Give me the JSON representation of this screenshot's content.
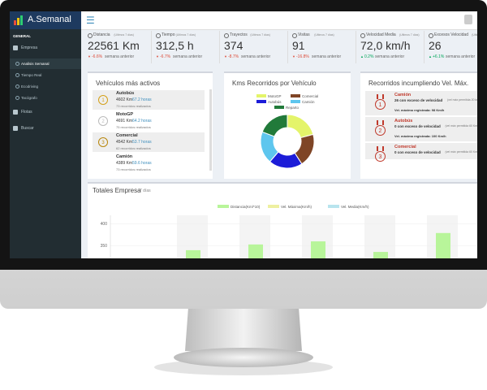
{
  "app": {
    "brand": "A.Semanal"
  },
  "sidebar": {
    "section": "GENERAL",
    "items": [
      "Empresa",
      "Analisis Semanal",
      "Tiempo Real",
      "Ecodriving",
      "Tacógrafo",
      "Flotas",
      "Buscar"
    ]
  },
  "kpis": [
    {
      "label": "Distancia",
      "period": "(Ultimos 7 días)",
      "value": "22561 Km",
      "change": "-6.6%",
      "note": "semana anterior",
      "trend": "down"
    },
    {
      "label": "Tiempo",
      "period": "(Ultimos 7 días)",
      "value": "312,5 h",
      "change": "-6.7%",
      "note": "semana anterior",
      "trend": "down"
    },
    {
      "label": "Trayectos",
      "period": "(Ultimos 7 días)",
      "value": "374",
      "change": "-8.7%",
      "note": "semana anterior",
      "trend": "down"
    },
    {
      "label": "Visitas",
      "period": "(Ultimos 7 días)",
      "value": "91",
      "change": "-16.8%",
      "note": "semana anterior",
      "trend": "down"
    },
    {
      "label": "Velocidad Media",
      "period": "(Ultimos 7 días)",
      "value": "72,0 km/h",
      "change": "0.2%",
      "note": "semana anterior",
      "trend": "up"
    },
    {
      "label": "Excesos Velocidad",
      "period": "(Ultimos 7 días)",
      "value": "26",
      "change": "+6.1%",
      "note": "semana anterior",
      "trend": "up"
    }
  ],
  "vehicles": {
    "title": "Vehículos más activos",
    "items": [
      {
        "name": "Autobús",
        "km": "4602 Km",
        "hours": "67.2 horas",
        "trips": "73 recorridos realizados",
        "medal": "1"
      },
      {
        "name": "MotoGP",
        "km": "4691 Km",
        "hours": "64.2 horas",
        "trips": "75 recorridos realizados",
        "medal": "2"
      },
      {
        "name": "Comercial",
        "km": "4542 Km",
        "hours": "53.7 horas",
        "trips": "62 recorridos realizados",
        "medal": "3"
      },
      {
        "name": "Camión",
        "km": "4389 Km",
        "hours": "59.6 horas",
        "trips": "73 recorridos realizados",
        "medal": ""
      }
    ]
  },
  "donut": {
    "type": "pie",
    "title": "Kms Recorridos por Vehículo",
    "categories": [
      "MotoGP",
      "Comercial",
      "Autobús",
      "Camión",
      "Reparto"
    ],
    "values": [
      4691,
      4542,
      4602,
      4389,
      4337
    ],
    "colors": [
      "#e4f46a",
      "#7f4526",
      "#1c1cd8",
      "#5ec6ee",
      "#217a3a"
    ]
  },
  "speeding": {
    "title": "Recorridos incumpliendo Vel. Máx.",
    "items": [
      {
        "rank": "1",
        "name": "Camión",
        "count": "26 con exceso de velocidad",
        "limit": "(vel máx permitida 20 km/h)",
        "max": "Vel. máxima registrada: 98 Km/h"
      },
      {
        "rank": "2",
        "name": "Autobús",
        "count": "0 con exceso de velocidad",
        "limit": "(vel máx permitida 60 Km/h)",
        "max": "Vel. máxima registrada: 100 Km/h"
      },
      {
        "rank": "3",
        "name": "Comercial",
        "count": "0 con exceso de velocidad",
        "limit": "(vel máx permitida 60 Km/h)",
        "max": ""
      }
    ]
  },
  "totals": {
    "type": "bar",
    "title": "Totales Empresa",
    "subtitle": "7 días",
    "legend": [
      "Distancia(Km/*10)",
      "Vel. Máxima(Km/h)",
      "Vel. Media(Km/h)"
    ],
    "legend_colors": [
      "#b8f59a",
      "#eef0a0",
      "#b8e4ee"
    ],
    "values": [
      340,
      353,
      360,
      336,
      379
    ],
    "color": "#b8f59a",
    "ylim": [
      290,
      410
    ],
    "yticks": [
      300,
      350,
      400
    ]
  }
}
